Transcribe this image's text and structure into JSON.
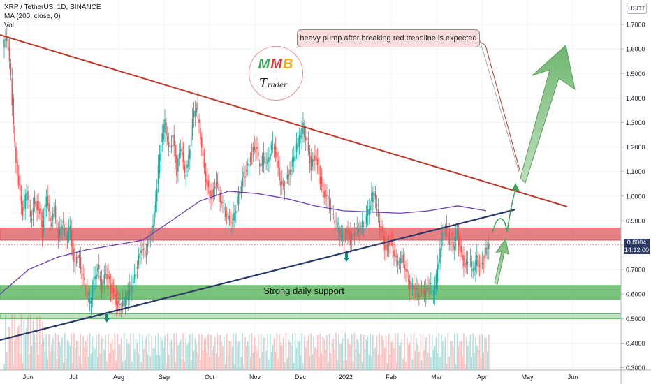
{
  "header": {
    "title": "XRP / TetherUS, 1D, BINANCE",
    "indicator": "MA (200, close, 0)",
    "volume_label": "Vol"
  },
  "currency_box": "USDT",
  "price_tag": {
    "price": "0.8004",
    "countdown": "14:12:00"
  },
  "annotation": "heavy pump after breaking red trendline is expected",
  "support_label": "Strong daily support",
  "logo": {
    "m1": "M",
    "m2": "M",
    "coin": "B",
    "word_first": "T",
    "word_rest": "rader"
  },
  "colors": {
    "up_candle": "#26a69a",
    "down_candle": "#ef5350",
    "ma_line": "#6a3fb5",
    "red_trendline": "#c0392b",
    "blue_trendline": "#2b3a67",
    "resistance_zone": "#d9575b",
    "support_zone": "#4caf50",
    "arrow": "#7cc47c"
  },
  "chart_data": {
    "type": "candlestick",
    "symbol": "XRP / TetherUS",
    "interval": "1D",
    "x_ticks": [
      "Jun",
      "Jul",
      "Aug",
      "Sep",
      "Oct",
      "Nov",
      "Dec",
      "2022",
      "Feb",
      "Mar",
      "Apr",
      "May",
      "Jun"
    ],
    "y_ticks": [
      "1.7000",
      "1.6000",
      "1.5000",
      "1.4000",
      "1.3000",
      "1.2000",
      "1.1000",
      "1.0000",
      "0.9000",
      "0.8000",
      "0.7000",
      "0.6000",
      "0.5000",
      "0.4000",
      "0.3000"
    ],
    "ylim": [
      0.29,
      1.8
    ],
    "price_series": [
      [
        1.64,
        1.48,
        1.2,
        1.05,
        0.94,
        1.02,
        0.9,
        0.98,
        0.95,
        0.85,
        1.0,
        0.88,
        0.96,
        0.84,
        0.9
      ],
      [
        0.82,
        0.86,
        0.72,
        0.76,
        0.68,
        0.62,
        0.56,
        0.66,
        0.72,
        0.62,
        0.68,
        0.64,
        0.6,
        0.56,
        0.55
      ],
      [
        0.58,
        0.62,
        0.66,
        0.72,
        0.78,
        0.75,
        0.82,
        0.88,
        1.05,
        1.22,
        1.3,
        1.18,
        1.25,
        1.1,
        1.2
      ],
      [
        1.08,
        1.15,
        1.32,
        1.38,
        1.24,
        1.1,
        1.02,
        1.0,
        1.06,
        0.98,
        0.94,
        0.92,
        0.9,
        0.96,
        1.02
      ],
      [
        1.08,
        1.12,
        1.18,
        1.2,
        1.12,
        1.16,
        1.14,
        1.22,
        1.18,
        1.06,
        1.02,
        1.08,
        1.12,
        1.18,
        1.24
      ],
      [
        1.28,
        1.22,
        1.12,
        1.16,
        1.08,
        1.02,
        1.0,
        0.96,
        0.9,
        0.86,
        0.82,
        0.86,
        0.82,
        0.84,
        0.86
      ],
      [
        0.88,
        0.92,
        0.98,
        1.02,
        0.9,
        0.84,
        0.78,
        0.82,
        0.76,
        0.72,
        0.76,
        0.7,
        0.64,
        0.62,
        0.6
      ],
      [
        0.62,
        0.6,
        0.64,
        0.6,
        0.7,
        0.84,
        0.88,
        0.82,
        0.78,
        0.84,
        0.76,
        0.72,
        0.74,
        0.7,
        0.74
      ],
      [
        0.72,
        0.76,
        0.8
      ]
    ],
    "moving_average": {
      "name": "MA (200, close, 0)",
      "y": [
        0.6,
        0.7,
        0.75,
        0.78,
        0.8,
        0.82,
        0.9,
        0.98,
        1.02,
        1.01,
        0.99,
        0.96,
        0.94,
        0.935,
        0.93,
        0.94,
        0.96,
        0.94
      ]
    },
    "zones": [
      {
        "name": "resistance",
        "y": [
          0.82,
          0.87
        ]
      },
      {
        "name": "Strong daily support",
        "y": [
          0.58,
          0.635
        ]
      },
      {
        "name": "lower support",
        "y": [
          0.5,
          0.52
        ]
      }
    ],
    "trendlines": [
      {
        "name": "red descending",
        "y_start": 1.67,
        "y_end": 0.95
      },
      {
        "name": "blue ascending",
        "y_start": 0.41,
        "y_end": 0.94
      }
    ]
  }
}
